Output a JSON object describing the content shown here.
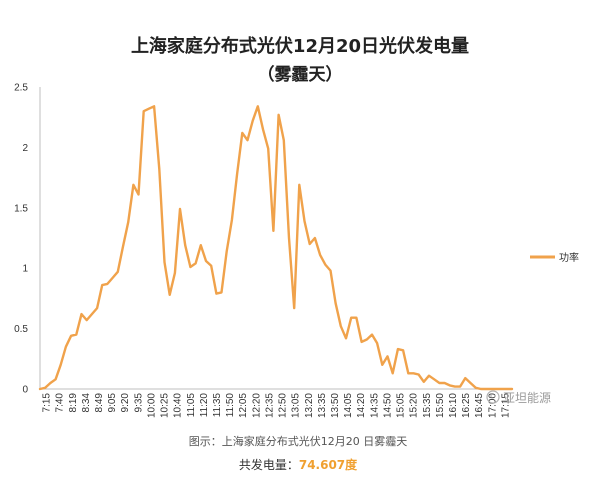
{
  "chart_data": {
    "type": "line",
    "title": "上海家庭分布式光伏12月20日光伏发电量",
    "subtitle": "（雾霾天）",
    "xlabel": "",
    "ylabel": "",
    "ylim": [
      0,
      2.5
    ],
    "yticks": [
      "0",
      "0.5",
      "1",
      "1.5",
      "2",
      "2.5"
    ],
    "xtick_labels": [
      "7:15",
      "7:40",
      "8:19",
      "8:34",
      "8:49",
      "9:05",
      "9:20",
      "9:35",
      "10:00",
      "10:25",
      "10:40",
      "11:05",
      "11:20",
      "11:35",
      "11:50",
      "12:05",
      "12:20",
      "12:35",
      "12:50",
      "13:05",
      "13:20",
      "13:35",
      "13:50",
      "14:05",
      "14:20",
      "14:35",
      "14:50",
      "15:05",
      "15:20",
      "15:35",
      "15:50",
      "16:10",
      "16:25",
      "16:45",
      "17:00",
      "17:15"
    ],
    "legend": {
      "position": "right"
    },
    "grid": false,
    "series": [
      {
        "name": "功率",
        "color": "#f0a24b",
        "values": [
          0,
          0.01,
          0.05,
          0.08,
          0.2,
          0.35,
          0.44,
          0.45,
          0.62,
          0.57,
          0.62,
          0.67,
          0.86,
          0.87,
          0.92,
          0.97,
          1.18,
          1.38,
          1.69,
          1.61,
          2.3,
          2.32,
          2.34,
          1.82,
          1.05,
          0.78,
          0.96,
          1.49,
          1.19,
          1.01,
          1.04,
          1.19,
          1.06,
          1.02,
          0.79,
          0.8,
          1.14,
          1.4,
          1.78,
          2.12,
          2.06,
          2.22,
          2.34,
          2.15,
          1.99,
          1.31,
          2.27,
          2.06,
          1.25,
          0.67,
          1.69,
          1.39,
          1.2,
          1.25,
          1.11,
          1.03,
          0.98,
          0.71,
          0.52,
          0.42,
          0.59,
          0.59,
          0.39,
          0.41,
          0.45,
          0.38,
          0.2,
          0.27,
          0.13,
          0.33,
          0.32,
          0.13,
          0.13,
          0.12,
          0.06,
          0.11,
          0.08,
          0.05,
          0.05,
          0.03,
          0.02,
          0.02,
          0.09,
          0.05,
          0.01,
          0,
          0,
          0,
          0,
          0,
          0,
          0
        ]
      }
    ]
  },
  "watermark": "亚坦能源",
  "caption": {
    "line1": "图示：上海家庭分布式光伏12月20 日雾霾天",
    "total_label": "共发电量：",
    "total_value": "74.607度"
  }
}
